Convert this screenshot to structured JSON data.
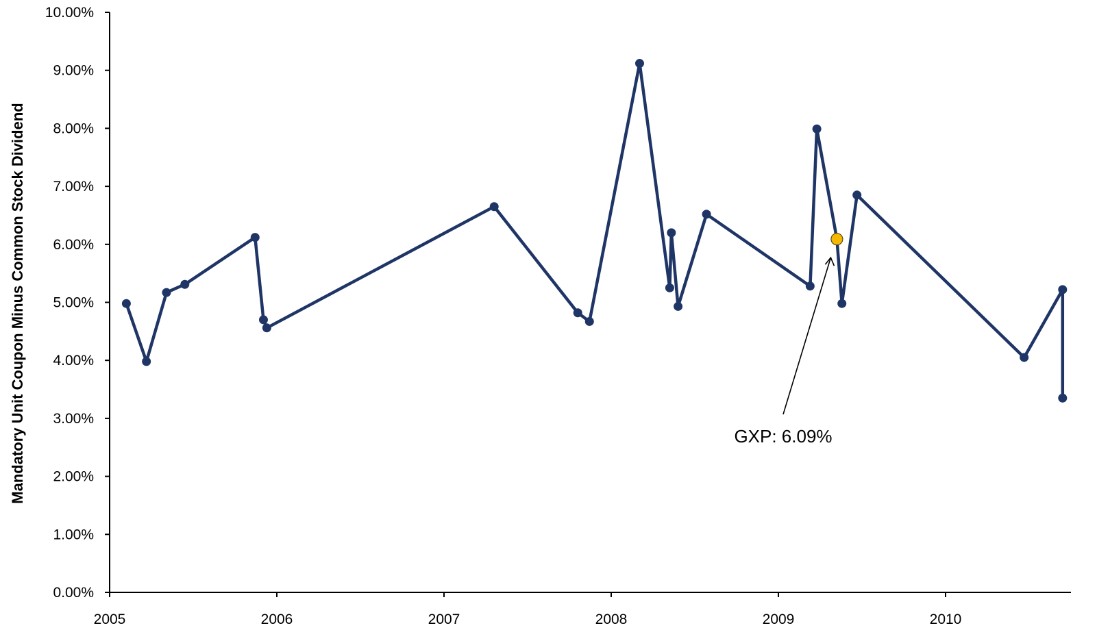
{
  "chart_data": {
    "type": "line",
    "title": "",
    "xlabel": "",
    "ylabel": "Mandatory Unit Coupon Minus Common Stock Dividend",
    "x_ticks": [
      "2005",
      "2006",
      "2007",
      "2008",
      "2009",
      "2010"
    ],
    "y_ticks": [
      "0.00%",
      "1.00%",
      "2.00%",
      "3.00%",
      "4.00%",
      "5.00%",
      "6.00%",
      "7.00%",
      "8.00%",
      "9.00%",
      "10.00%"
    ],
    "xlim": [
      2005.0,
      2010.73
    ],
    "ylim": [
      0,
      10
    ],
    "grid": false,
    "series": [
      {
        "color": "#1f3566",
        "points": [
          {
            "x": 2005.1,
            "y": 4.98
          },
          {
            "x": 2005.22,
            "y": 3.98
          },
          {
            "x": 2005.34,
            "y": 5.17
          },
          {
            "x": 2005.45,
            "y": 5.31
          },
          {
            "x": 2005.87,
            "y": 6.12
          },
          {
            "x": 2005.92,
            "y": 4.7
          },
          {
            "x": 2005.94,
            "y": 4.56
          },
          {
            "x": 2007.3,
            "y": 6.65
          },
          {
            "x": 2007.8,
            "y": 4.82
          },
          {
            "x": 2007.87,
            "y": 4.67
          },
          {
            "x": 2008.17,
            "y": 9.12
          },
          {
            "x": 2008.35,
            "y": 5.25
          },
          {
            "x": 2008.36,
            "y": 6.2
          },
          {
            "x": 2008.4,
            "y": 4.93
          },
          {
            "x": 2008.57,
            "y": 6.52
          },
          {
            "x": 2009.19,
            "y": 5.28
          },
          {
            "x": 2009.23,
            "y": 7.99
          },
          {
            "x": 2009.35,
            "y": 6.09
          },
          {
            "x": 2009.38,
            "y": 4.98
          },
          {
            "x": 2009.47,
            "y": 6.85
          },
          {
            "x": 2010.47,
            "y": 4.05
          },
          {
            "x": 2010.7,
            "y": 5.22
          },
          {
            "x": 2010.7,
            "y": 3.35
          }
        ]
      }
    ],
    "highlight": {
      "x": 2009.35,
      "y": 6.09,
      "color": "#f5b800",
      "label": "GXP: 6.09%"
    }
  }
}
